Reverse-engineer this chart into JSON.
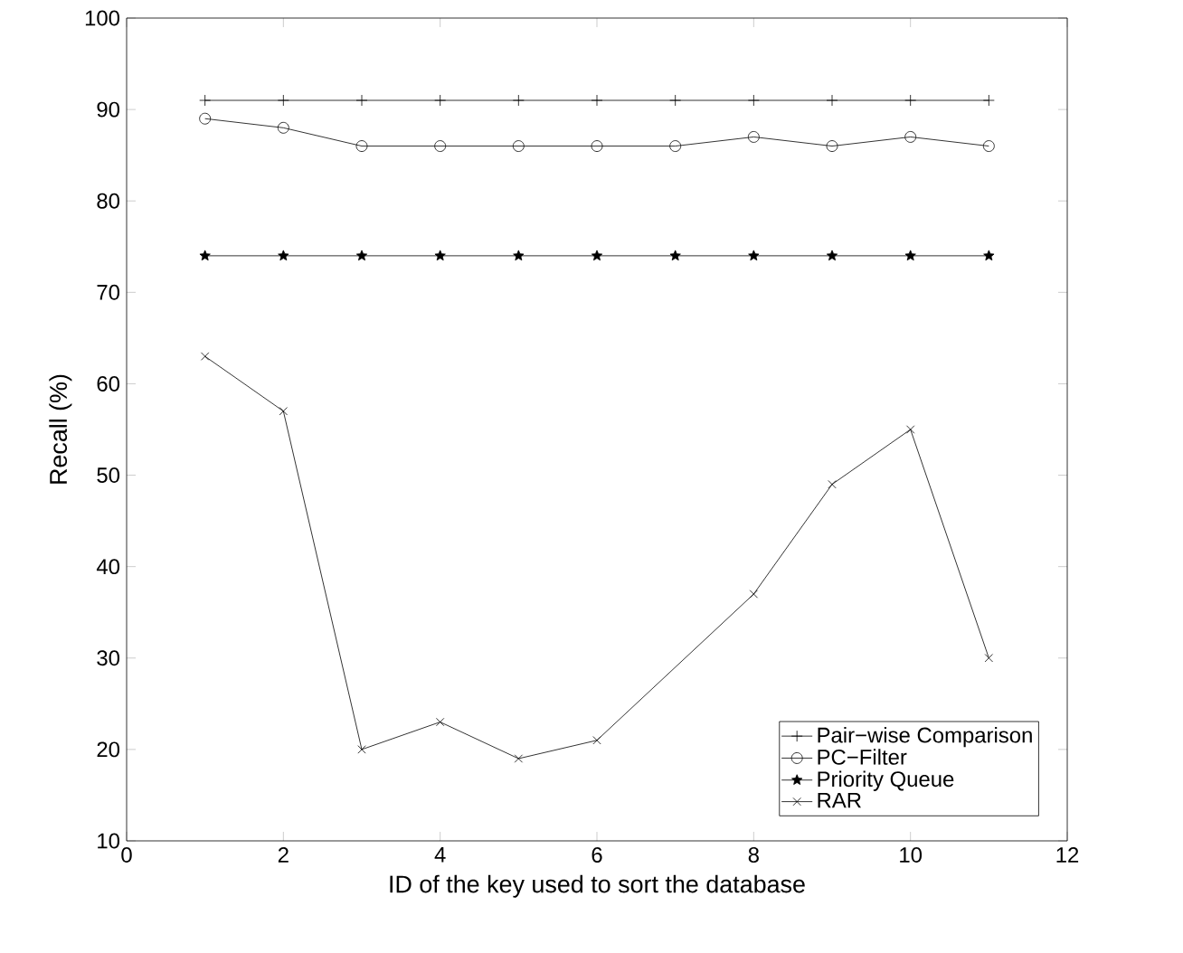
{
  "chart_data": {
    "type": "line",
    "xlabel": "ID of the key used to sort the database",
    "ylabel": "Recall (%)",
    "x": [
      1,
      2,
      3,
      4,
      5,
      6,
      7,
      8,
      9,
      10,
      11
    ],
    "xlim": [
      0,
      12
    ],
    "xticks": [
      0,
      2,
      4,
      6,
      8,
      10,
      12
    ],
    "ylim": [
      10,
      100
    ],
    "yticks": [
      10,
      20,
      30,
      40,
      50,
      60,
      70,
      80,
      90,
      100
    ],
    "legend": "bottom right",
    "grid": false,
    "series": [
      {
        "name": "Pair−wise Comparison",
        "color": "#000000",
        "marker": "plus",
        "values": [
          91,
          91,
          91,
          91,
          91,
          91,
          91,
          91,
          91,
          91,
          91
        ]
      },
      {
        "name": "PC−Filter",
        "color": "#000000",
        "marker": "circle",
        "values": [
          89,
          88,
          86,
          86,
          86,
          86,
          86,
          87,
          86,
          87,
          86
        ]
      },
      {
        "name": "Priority Queue",
        "color": "#000000",
        "marker": "star",
        "values": [
          74,
          74,
          74,
          74,
          74,
          74,
          74,
          74,
          74,
          74,
          74
        ]
      },
      {
        "name": "RAR",
        "color": "#000000",
        "marker": "cross",
        "values": [
          63,
          57,
          20,
          23,
          19,
          21,
          null,
          37,
          49,
          55,
          30
        ]
      }
    ]
  }
}
